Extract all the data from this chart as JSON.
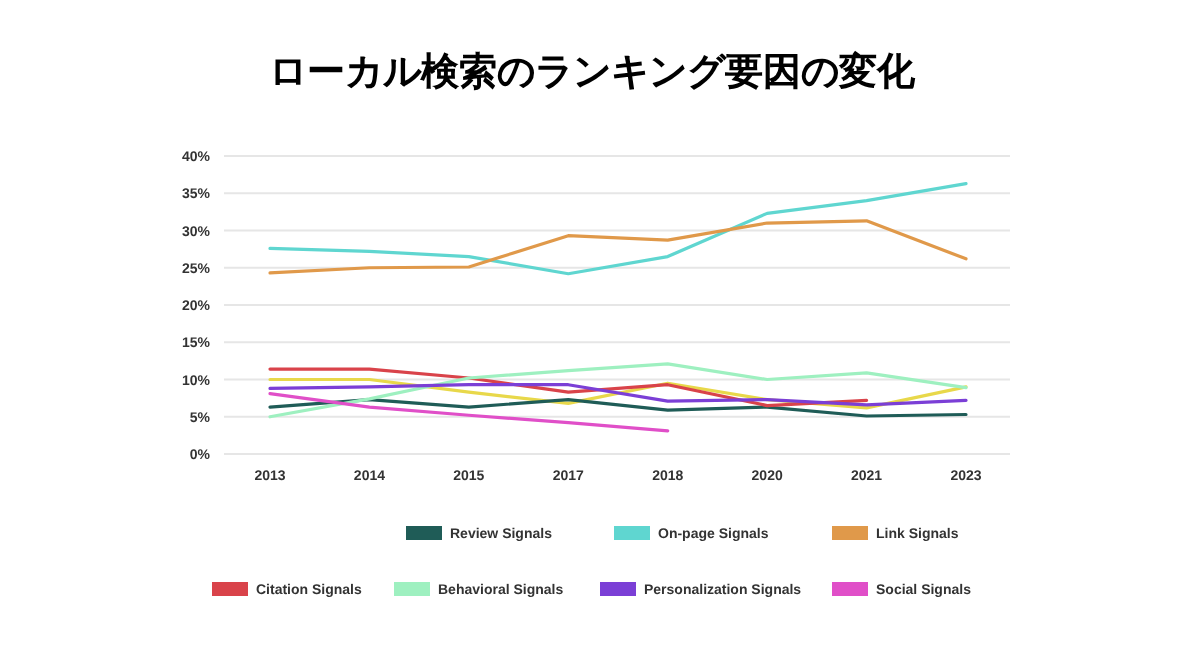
{
  "chart_data": {
    "type": "line",
    "title": "ローカル検索のランキング要因の変化",
    "categories": [
      "2013",
      "2014",
      "2015",
      "2017",
      "2018",
      "2020",
      "2021",
      "2023"
    ],
    "ylim": [
      0,
      40
    ],
    "yticks": [
      {
        "value": 0,
        "label": "0%"
      },
      {
        "value": 5,
        "label": "5%"
      },
      {
        "value": 10,
        "label": "10%"
      },
      {
        "value": 15,
        "label": "15%"
      },
      {
        "value": 20,
        "label": "20%"
      },
      {
        "value": 25,
        "label": "25%"
      },
      {
        "value": 30,
        "label": "30%"
      },
      {
        "value": 35,
        "label": "35%"
      },
      {
        "value": 40,
        "label": "40%"
      }
    ],
    "grid": "y",
    "legend": "bottom",
    "marker": "none",
    "line_style": "solid",
    "series": [
      {
        "color": "#e8d84a",
        "values": [
          10,
          10,
          8.3,
          6.8,
          9.5,
          7.3,
          6.2,
          9
        ]
      },
      {
        "name": "Review Signals",
        "color": "#1f5c57",
        "values": [
          6.3,
          7.3,
          6.3,
          7.3,
          5.9,
          6.3,
          5.1,
          5.3
        ]
      },
      {
        "name": "On-page Signals",
        "color": "#5fd6d0",
        "values": [
          27.6,
          27.2,
          26.5,
          24.2,
          26.5,
          32.3,
          34,
          36.3
        ]
      },
      {
        "name": "Link Signals",
        "color": "#e0994a",
        "values": [
          24.3,
          25,
          25.1,
          29.3,
          28.7,
          31,
          31.3,
          26.2
        ]
      },
      {
        "name": "Citation Signals",
        "color": "#d9434a",
        "values": [
          11.4,
          11.4,
          10.2,
          8.3,
          9.3,
          6.5,
          7.2,
          null
        ]
      },
      {
        "name": "Behavioral Signals",
        "color": "#9ef0c0",
        "values": [
          5,
          7.4,
          10.2,
          11.2,
          12.1,
          10,
          10.9,
          8.9
        ]
      },
      {
        "name": "Personalization Signals",
        "color": "#7b3fd6",
        "values": [
          8.8,
          9,
          9.3,
          9.3,
          7.1,
          7.3,
          6.6,
          7.2
        ]
      },
      {
        "name": "Social Signals",
        "color": "#e04fc8",
        "values": [
          8.1,
          6.3,
          5.2,
          4.2,
          3.1,
          null,
          null,
          null
        ]
      }
    ]
  }
}
